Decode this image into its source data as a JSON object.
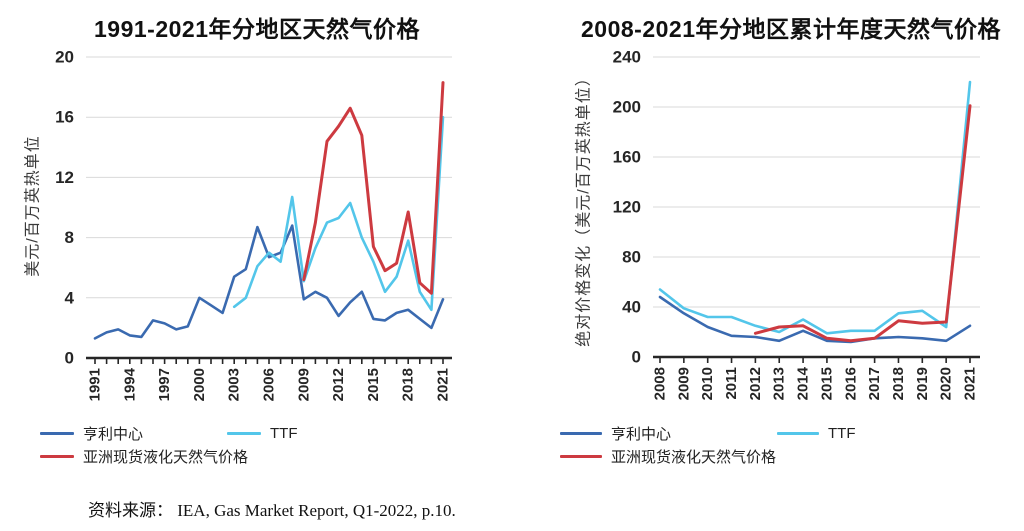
{
  "page": {
    "background": "#ffffff"
  },
  "colors": {
    "henry_hub": "#3a6ab0",
    "ttf": "#53c6ea",
    "asia_lng": "#cd3a40",
    "grid": "#d9d9d9",
    "axis": "#262626"
  },
  "source_note": "资料来源： IEA, Gas Market Report, Q1-2022, p.10.",
  "chart_data": [
    {
      "type": "line",
      "title": "1991-2021年分地区天然气价格",
      "xlabel": "",
      "ylabel": "美元/百万英热单位",
      "ylim": [
        0,
        20
      ],
      "yticks": [
        0,
        4,
        8,
        12,
        16,
        20
      ],
      "grid": true,
      "legend_position": "bottom",
      "x_label_step": 3,
      "x": [
        1991,
        1992,
        1993,
        1994,
        1995,
        1996,
        1997,
        1998,
        1999,
        2000,
        2001,
        2002,
        2003,
        2004,
        2005,
        2006,
        2007,
        2008,
        2009,
        2010,
        2011,
        2012,
        2013,
        2014,
        2015,
        2016,
        2017,
        2018,
        2019,
        2020,
        2021
      ],
      "series": [
        {
          "name": "亨利中心",
          "color_key": "henry_hub",
          "values": [
            1.3,
            1.7,
            1.9,
            1.5,
            1.4,
            2.5,
            2.3,
            1.9,
            2.1,
            4.0,
            3.5,
            3.0,
            5.4,
            5.9,
            8.7,
            6.7,
            7.0,
            8.8,
            3.9,
            4.4,
            4.0,
            2.8,
            3.7,
            4.4,
            2.6,
            2.5,
            3.0,
            3.2,
            2.6,
            2.0,
            3.9
          ]
        },
        {
          "name": "TTF",
          "color_key": "ttf",
          "values": [
            null,
            null,
            null,
            null,
            null,
            null,
            null,
            null,
            null,
            null,
            null,
            null,
            3.4,
            4.0,
            6.1,
            7.0,
            6.4,
            10.7,
            5.1,
            7.3,
            9.0,
            9.3,
            10.3,
            8.0,
            6.4,
            4.4,
            5.4,
            7.8,
            4.4,
            3.2,
            16.0
          ]
        },
        {
          "name": "亚洲现货液化天然气价格",
          "color_key": "asia_lng",
          "values": [
            null,
            null,
            null,
            null,
            null,
            null,
            null,
            null,
            null,
            null,
            null,
            null,
            null,
            null,
            null,
            null,
            null,
            null,
            5.2,
            9.0,
            14.4,
            15.4,
            16.6,
            14.8,
            7.4,
            5.8,
            6.3,
            9.7,
            5.0,
            4.3,
            18.3
          ]
        }
      ]
    },
    {
      "type": "line",
      "title": "2008-2021年分地区累计年度天然气价格",
      "xlabel": "",
      "ylabel": "绝对价格变化（美元/百万英热单位）",
      "ylim": [
        0,
        240
      ],
      "yticks": [
        0,
        40,
        80,
        120,
        160,
        200,
        240
      ],
      "grid": true,
      "legend_position": "bottom",
      "x_label_step": 1,
      "x": [
        2008,
        2009,
        2010,
        2011,
        2012,
        2013,
        2014,
        2015,
        2016,
        2017,
        2018,
        2019,
        2020,
        2021
      ],
      "series": [
        {
          "name": "亨利中心",
          "color_key": "henry_hub",
          "values": [
            48,
            35,
            24,
            17,
            16,
            13,
            21,
            13,
            12,
            15,
            16,
            15,
            13,
            25
          ]
        },
        {
          "name": "TTF",
          "color_key": "ttf",
          "values": [
            54,
            39,
            32,
            32,
            25,
            20,
            30,
            19,
            21,
            21,
            35,
            37,
            24,
            220
          ]
        },
        {
          "name": "亚洲现货液化天然气价格",
          "color_key": "asia_lng",
          "values": [
            null,
            null,
            null,
            null,
            19,
            24,
            25,
            15,
            13,
            15,
            29,
            27,
            28,
            201
          ]
        }
      ]
    }
  ]
}
